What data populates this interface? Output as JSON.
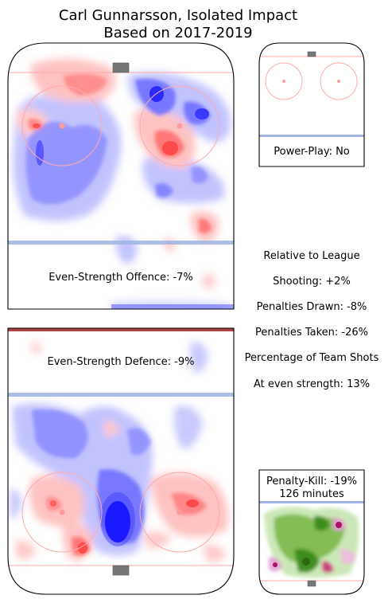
{
  "chart_data": {
    "type": "heatmap",
    "title": "Carl Gunnarsson, Isolated Impact",
    "subtitle": "Based on 2017-2019",
    "panels": [
      {
        "label": "Even-Strength Offence: -7%",
        "value_pct": -7
      },
      {
        "label": "Even-Strength Defence: -9%",
        "value_pct": -9
      },
      {
        "label": "Power-Play: No",
        "value": "No"
      },
      {
        "label": "Penalty-Kill: -19%",
        "sublabel": "126 minutes",
        "value_pct": -19,
        "minutes": 126
      }
    ],
    "stats_heading": "Relative to League",
    "stats": [
      {
        "label": "Shooting: +2%",
        "value_pct": 2
      },
      {
        "label": "Penalties Drawn: -8%",
        "value_pct": -8
      },
      {
        "label": "Penalties Taken: -26%",
        "value_pct": -26
      },
      {
        "label": "Percentage of Team Shots",
        "value_pct": null
      },
      {
        "label": "At even strength: 13%",
        "value_pct": 13
      }
    ],
    "colors": {
      "more": "#ff5555",
      "less": "#4444ff",
      "pk_more": "#cc2277",
      "pk_less": "#3a8a1a",
      "rink_line": "#ffaaaa",
      "blue_line": "#9fb4e0",
      "net": "#777777"
    }
  }
}
